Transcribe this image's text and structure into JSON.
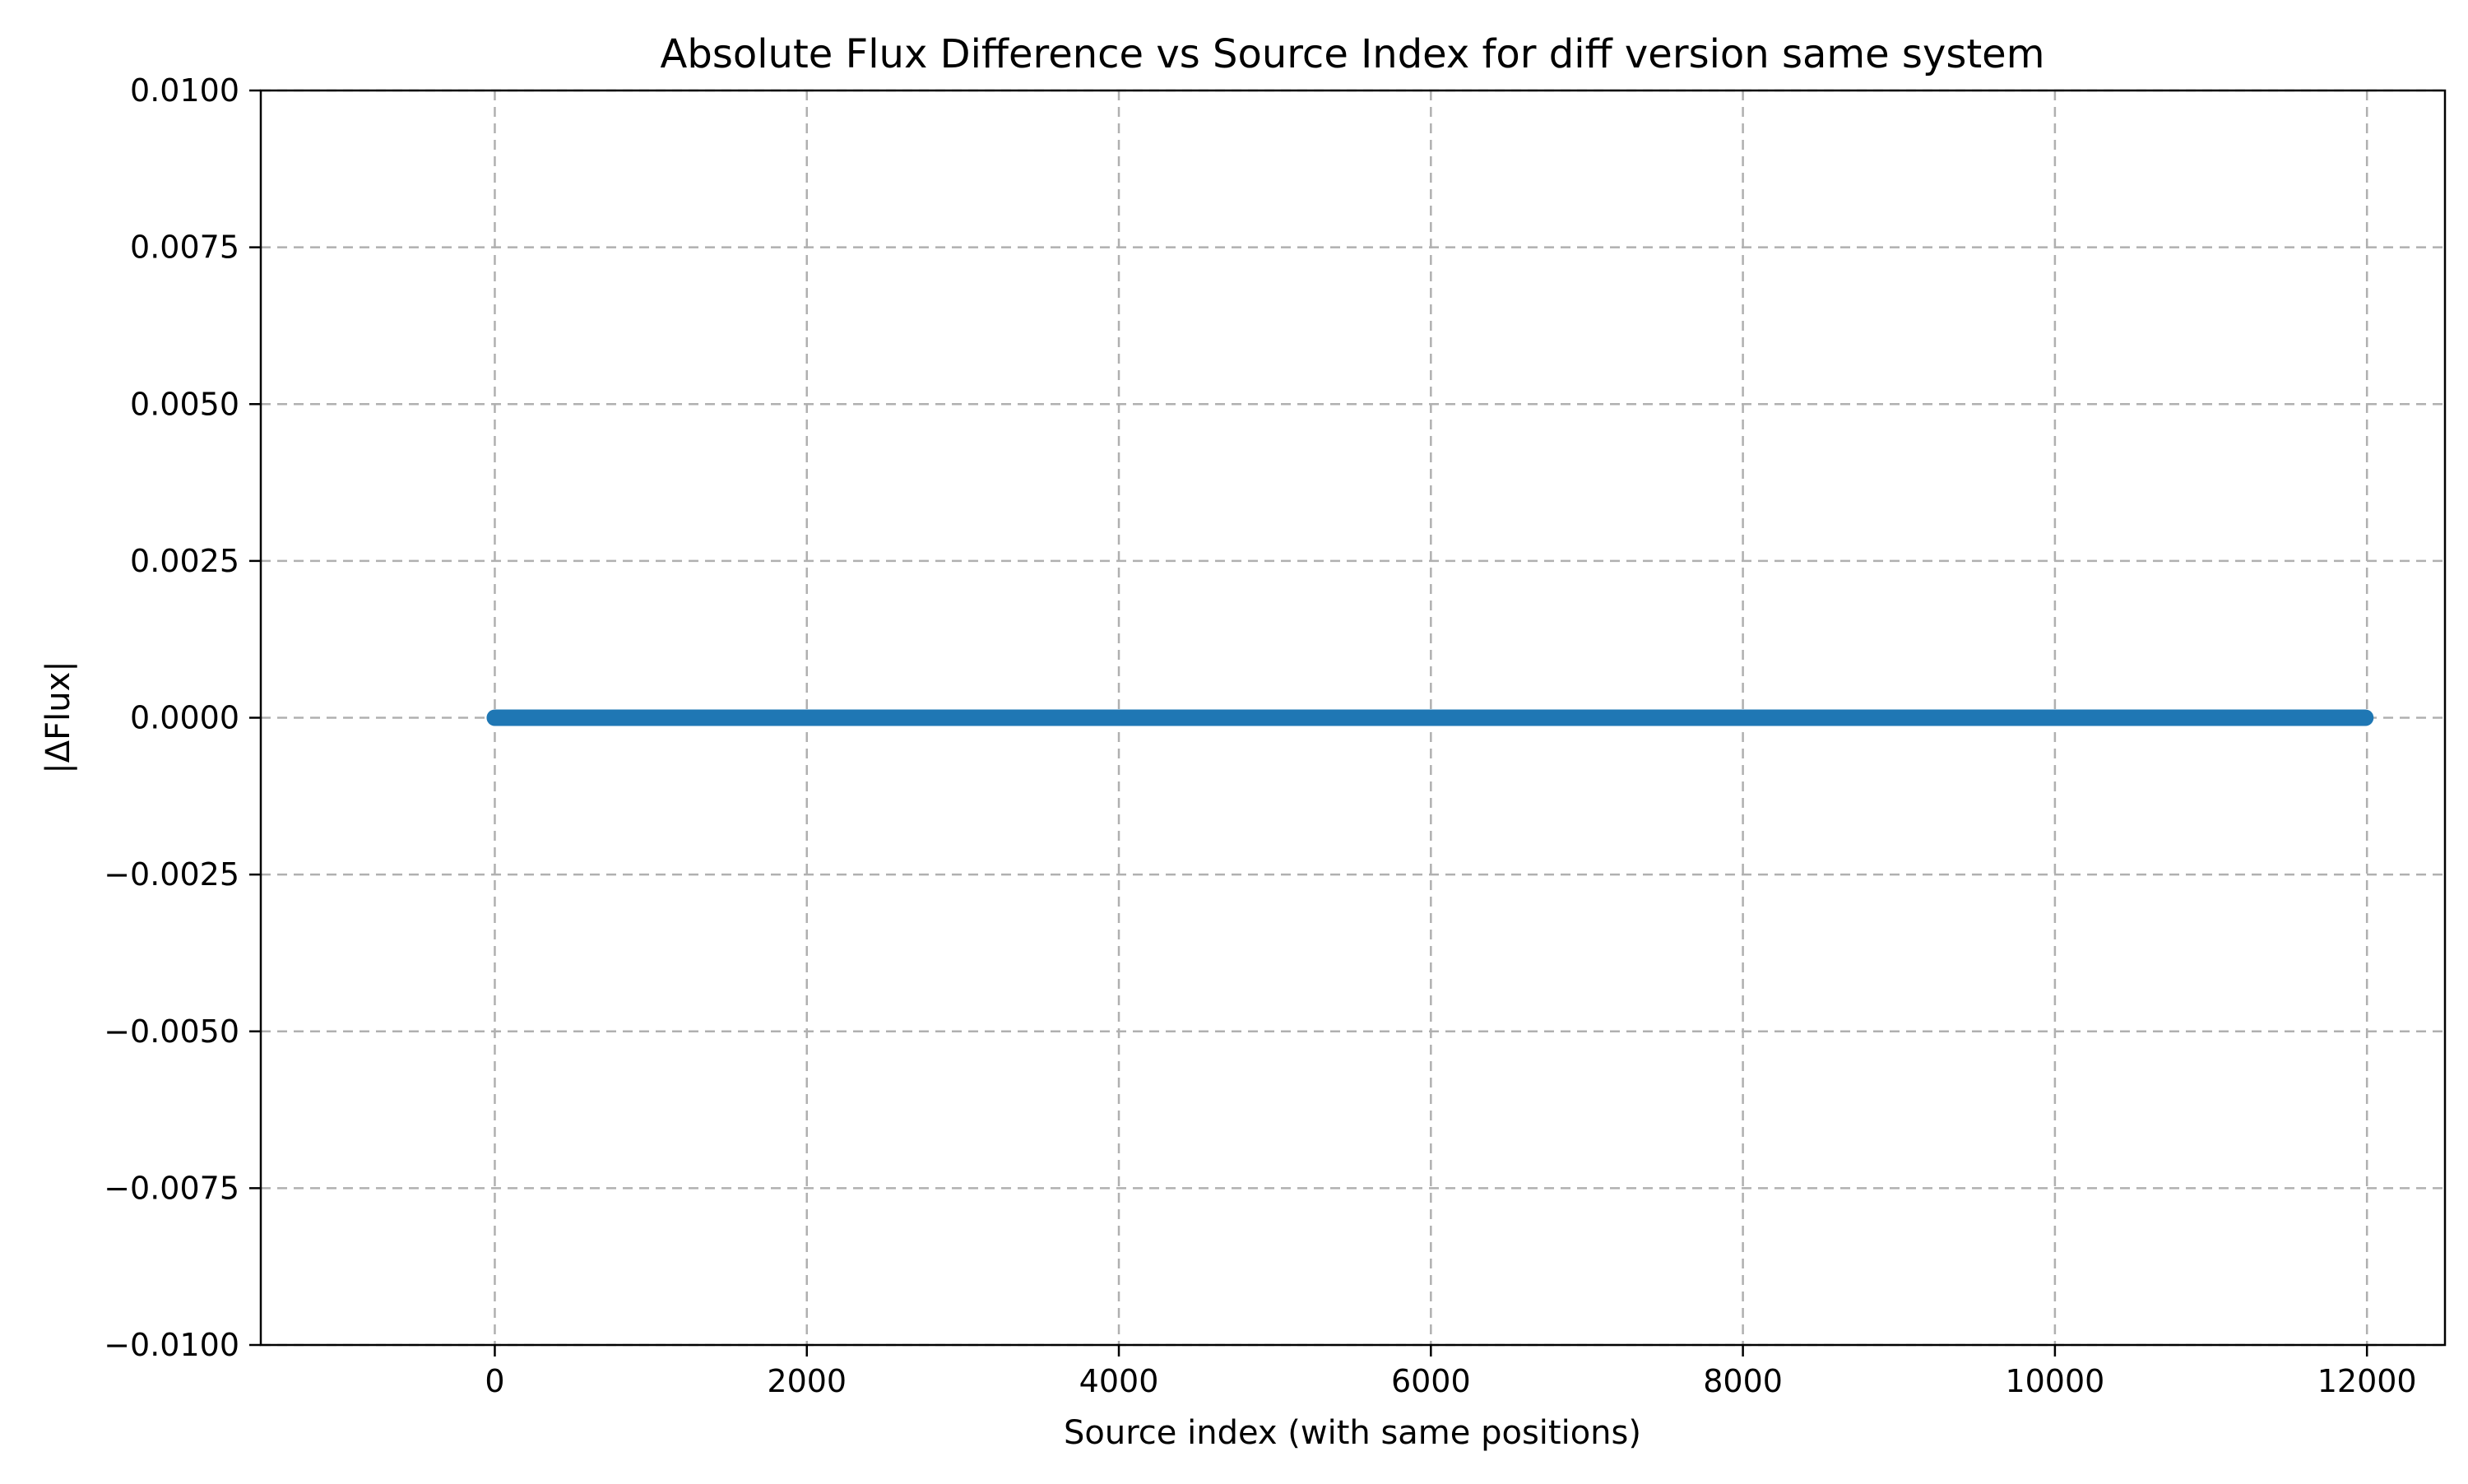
{
  "chart_data": {
    "type": "scatter",
    "title": "Absolute Flux Difference vs Source Index for diff version same system",
    "xlabel": "Source index (with same positions)",
    "ylabel": "|ΔFlux|",
    "xlim": [
      -1500,
      12500
    ],
    "ylim": [
      -0.01,
      0.01
    ],
    "grid": true,
    "x_ticks": [
      0,
      2000,
      4000,
      6000,
      8000,
      10000,
      12000
    ],
    "x_tick_labels": [
      "0",
      "2000",
      "4000",
      "6000",
      "8000",
      "10000",
      "12000"
    ],
    "y_ticks": [
      -0.01,
      -0.0075,
      -0.005,
      -0.0025,
      0,
      0.0025,
      0.005,
      0.0075,
      0.01
    ],
    "y_tick_labels": [
      "−0.0100",
      "−0.0075",
      "−0.0050",
      "−0.0025",
      "0.0000",
      "0.0025",
      "0.0050",
      "0.0075",
      "0.0100"
    ],
    "series": [
      {
        "color": "#1f77b4",
        "x_range": [
          0,
          11990
        ],
        "y_constant": 0.0
      }
    ]
  }
}
